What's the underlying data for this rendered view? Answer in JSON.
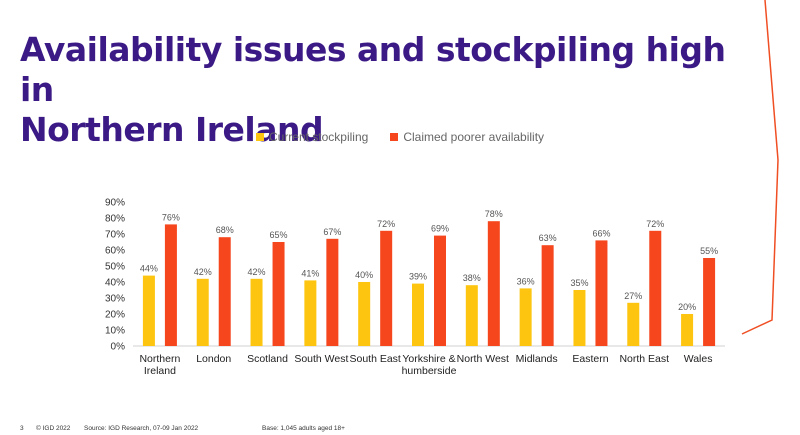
{
  "slide": {
    "title_line1": "Availability issues and stockpiling high in",
    "title_line2": "Northern Ireland",
    "page_number": "3",
    "copyright": "© IGD 2022",
    "source": "Source: IGD Research, 07-09 Jan 2022",
    "base": "Base: 1,045 adults aged 18+"
  },
  "colors": {
    "title": "#3b1a86",
    "accent_line": "#f04e23"
  },
  "chart_data": {
    "type": "bar",
    "categories": [
      "Northern Ireland",
      "London",
      "Scotland",
      "South West",
      "South East",
      "Yorkshire & humberside",
      "North West",
      "Midlands",
      "Eastern",
      "North East",
      "Wales"
    ],
    "category_lines": [
      [
        "Northern",
        "Ireland"
      ],
      [
        "London"
      ],
      [
        "Scotland"
      ],
      [
        "South West"
      ],
      [
        "South East"
      ],
      [
        "Yorkshire &",
        "humberside"
      ],
      [
        "North West"
      ],
      [
        "Midlands"
      ],
      [
        "Eastern"
      ],
      [
        "North East"
      ],
      [
        "Wales"
      ]
    ],
    "series": [
      {
        "name": "Current stockpiling",
        "color": "#fdc50f",
        "values": [
          44,
          42,
          42,
          41,
          40,
          39,
          38,
          36,
          35,
          27,
          20
        ]
      },
      {
        "name": "Claimed poorer availability",
        "color": "#f5461e",
        "values": [
          76,
          68,
          65,
          67,
          72,
          69,
          78,
          63,
          66,
          72,
          55
        ]
      }
    ],
    "ylim": [
      0,
      90
    ],
    "yticks": [
      0,
      10,
      20,
      30,
      40,
      50,
      60,
      70,
      80,
      90
    ],
    "tick_suffix": "%",
    "value_suffix": "%",
    "grid": false,
    "legend_position": "top-center"
  }
}
